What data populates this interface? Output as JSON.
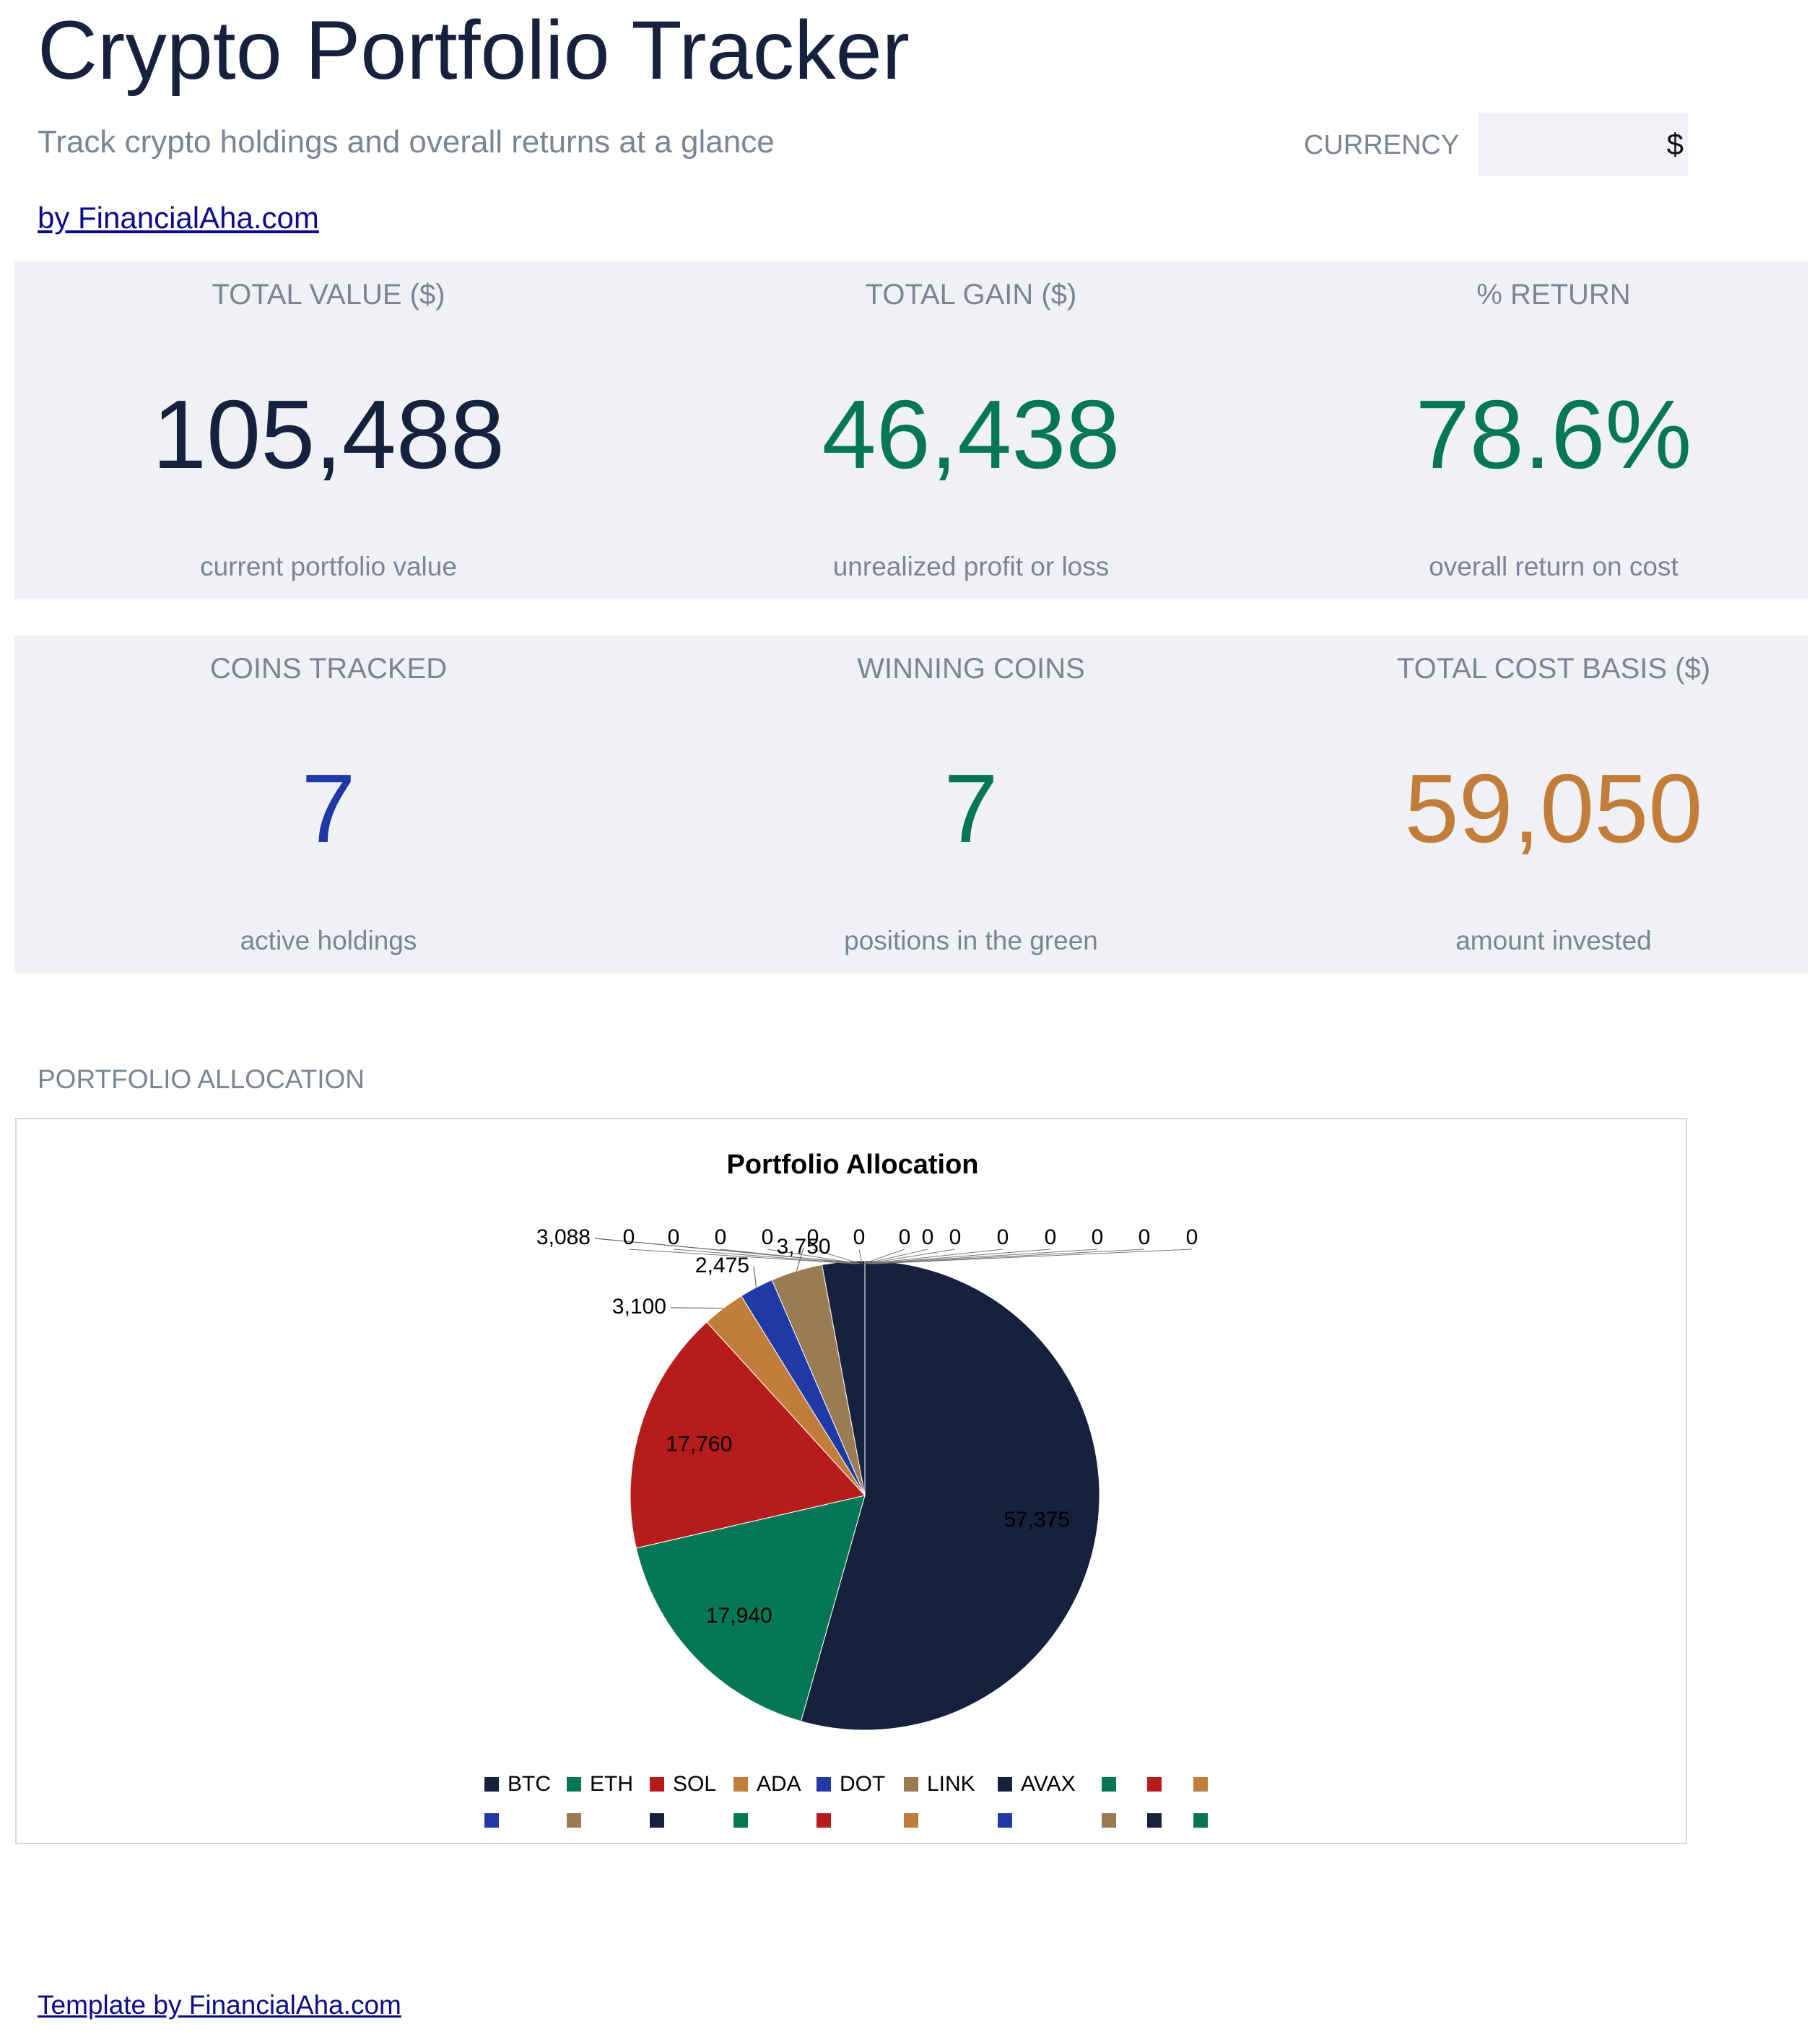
{
  "header": {
    "title": "Crypto Portfolio Tracker",
    "subtitle": "Track crypto holdings and overall returns at a glance",
    "byline": "by FinancialAha.com",
    "currency_label": "CURRENCY",
    "currency_value": "$"
  },
  "kpis_row1": [
    {
      "label": "TOTAL VALUE ($)",
      "value": "105,488",
      "caption": "current portfolio value",
      "color": "#16213e"
    },
    {
      "label": "TOTAL GAIN ($)",
      "value": "46,438",
      "caption": "unrealized profit or loss",
      "color": "#067754"
    },
    {
      "label": "% RETURN",
      "value": "78.6%",
      "caption": "overall return on cost",
      "color": "#067754"
    }
  ],
  "kpis_row2": [
    {
      "label": "COINS TRACKED",
      "value": "7",
      "caption": "active holdings",
      "color": "#1f3aa6"
    },
    {
      "label": "WINNING COINS",
      "value": "7",
      "caption": "positions in the green",
      "color": "#067754"
    },
    {
      "label": "TOTAL COST BASIS ($)",
      "value": "59,050",
      "caption": "amount invested",
      "color": "#c27d3a"
    }
  ],
  "section_title": "PORTFOLIO ALLOCATION",
  "chart_data": {
    "type": "pie",
    "title": "Portfolio Allocation",
    "categories": [
      "BTC",
      "ETH",
      "SOL",
      "ADA",
      "DOT",
      "LINK",
      "AVAX"
    ],
    "values": [
      57375,
      17940,
      17760,
      3100,
      2475,
      3750,
      3088
    ],
    "value_labels": [
      "57,375",
      "17,940",
      "17,760",
      "3,100",
      "2,475",
      "3,750",
      "3,088"
    ],
    "zero_labels": [
      "0",
      "0",
      "0",
      "0",
      "0",
      "0",
      "0",
      "0",
      "0",
      "0",
      "0",
      "0",
      "0",
      "0"
    ],
    "colors": [
      "#16213e",
      "#067754",
      "#b71c1c",
      "#c27d3a",
      "#1f3aa6",
      "#9a7b53",
      "#16213e"
    ],
    "legend_placement": "bottom",
    "extra_legend_colors": [
      "#067754",
      "#b71c1c",
      "#c27d3a",
      "#1f3aa6",
      "#9a7b53",
      "#16213e",
      "#067754",
      "#b71c1c",
      "#c27d3a",
      "#1f3aa6",
      "#9a7b53",
      "#16213e",
      "#067754"
    ]
  },
  "footer": {
    "link": "Template by FinancialAha.com"
  }
}
